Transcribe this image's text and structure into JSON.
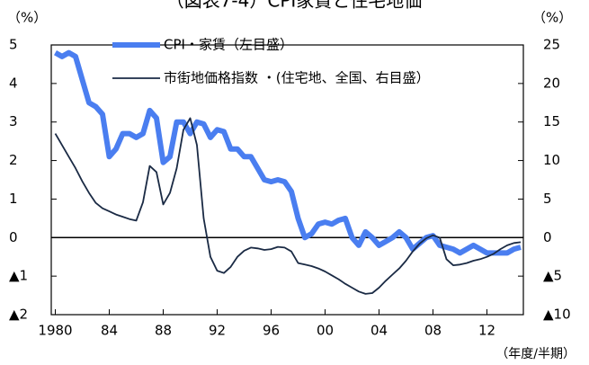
{
  "chart_data": {
    "type": "line",
    "title": "（図表7-4）CPI家賃と住宅地価",
    "y_unit": "（%）",
    "y2_unit": "（%）",
    "x_label": "（年度/半期）",
    "xlim": [
      1979.7,
      2014.7
    ],
    "xticks": [
      {
        "value": 1980,
        "label": "1980"
      },
      {
        "value": 1984,
        "label": "84"
      },
      {
        "value": 1988,
        "label": "88"
      },
      {
        "value": 1992,
        "label": "92"
      },
      {
        "value": 1996,
        "label": "96"
      },
      {
        "value": 2000,
        "label": "00"
      },
      {
        "value": 2004,
        "label": "04"
      },
      {
        "value": 2008,
        "label": "08"
      },
      {
        "value": 2012,
        "label": "12"
      }
    ],
    "ylim": [
      -2,
      5
    ],
    "yticks": [
      {
        "value": -2,
        "label": "▲2"
      },
      {
        "value": -1,
        "label": "▲1"
      },
      0,
      1,
      2,
      3,
      4,
      5
    ],
    "y2lim": [
      -10,
      25
    ],
    "y2ticks": [
      {
        "value": -10,
        "label": "▲10"
      },
      {
        "value": -5,
        "label": "▲5"
      },
      0,
      5,
      10,
      15,
      20,
      25
    ],
    "x": [
      1980,
      1980.5,
      1981,
      1981.5,
      1982,
      1982.5,
      1983,
      1983.5,
      1984,
      1984.5,
      1985,
      1985.5,
      1986,
      1986.5,
      1987,
      1987.5,
      1988,
      1988.5,
      1989,
      1989.5,
      1990,
      1990.5,
      1991,
      1991.5,
      1992,
      1992.5,
      1993,
      1993.5,
      1994,
      1994.5,
      1995,
      1995.5,
      1996,
      1996.5,
      1997,
      1997.5,
      1998,
      1998.5,
      1999,
      1999.5,
      2000,
      2000.5,
      2001,
      2001.5,
      2002,
      2002.5,
      2003,
      2003.5,
      2004,
      2004.5,
      2005,
      2005.5,
      2006,
      2006.5,
      2007,
      2007.5,
      2008,
      2008.5,
      2009,
      2009.5,
      2010,
      2010.5,
      2011,
      2011.5,
      2012,
      2012.5,
      2013,
      2013.5,
      2014,
      2014.5
    ],
    "series": [
      {
        "name": "CPI・家賃（左目盛）",
        "color": "#4a7ef0",
        "width": 6,
        "values": [
          4.8,
          4.7,
          4.8,
          4.7,
          4.1,
          3.5,
          3.4,
          3.2,
          2.1,
          2.3,
          2.7,
          2.7,
          2.6,
          2.7,
          3.3,
          3.1,
          1.95,
          2.1,
          3.0,
          3.0,
          2.7,
          3.0,
          2.95,
          2.6,
          2.8,
          2.75,
          2.3,
          2.3,
          2.1,
          2.1,
          1.8,
          1.5,
          1.45,
          1.5,
          1.45,
          1.2,
          0.5,
          0.0,
          0.1,
          0.35,
          0.4,
          0.35,
          0.45,
          0.5,
          0.0,
          -0.2,
          0.15,
          0.0,
          -0.2,
          -0.1,
          0.0,
          0.15,
          0.0,
          -0.3,
          -0.15,
          0.0,
          0.05,
          -0.2,
          -0.25,
          -0.3,
          -0.4,
          -0.3,
          -0.2,
          -0.3,
          -0.4,
          -0.4,
          -0.4,
          -0.4,
          -0.3,
          -0.25
        ]
      },
      {
        "name": "市街地価格指数 ・(住宅地、全国、右目盛）",
        "color": "#1a2a44",
        "width": 1.8,
        "axis": "y2",
        "values": [
          13.5,
          12,
          10.5,
          9,
          7.3,
          5.8,
          4.5,
          3.8,
          3.4,
          3.0,
          2.7,
          2.4,
          2.2,
          4.6,
          9.3,
          8.5,
          4.3,
          5.8,
          9,
          14,
          15.5,
          12,
          2.5,
          -2.5,
          -4.3,
          -4.6,
          -3.8,
          -2.5,
          -1.7,
          -1.3,
          -1.4,
          -1.6,
          -1.5,
          -1.2,
          -1.3,
          -1.8,
          -3.3,
          -3.5,
          -3.7,
          -4.0,
          -4.4,
          -4.9,
          -5.4,
          -6.0,
          -6.5,
          -7.0,
          -7.3,
          -7.2,
          -6.5,
          -5.6,
          -4.8,
          -4.0,
          -3.0,
          -1.8,
          -0.8,
          -0.1,
          0.3,
          0.0,
          -2.8,
          -3.6,
          -3.5,
          -3.3,
          -3.0,
          -2.8,
          -2.5,
          -2.1,
          -1.5,
          -1.0,
          -0.7,
          -0.6
        ]
      }
    ]
  }
}
